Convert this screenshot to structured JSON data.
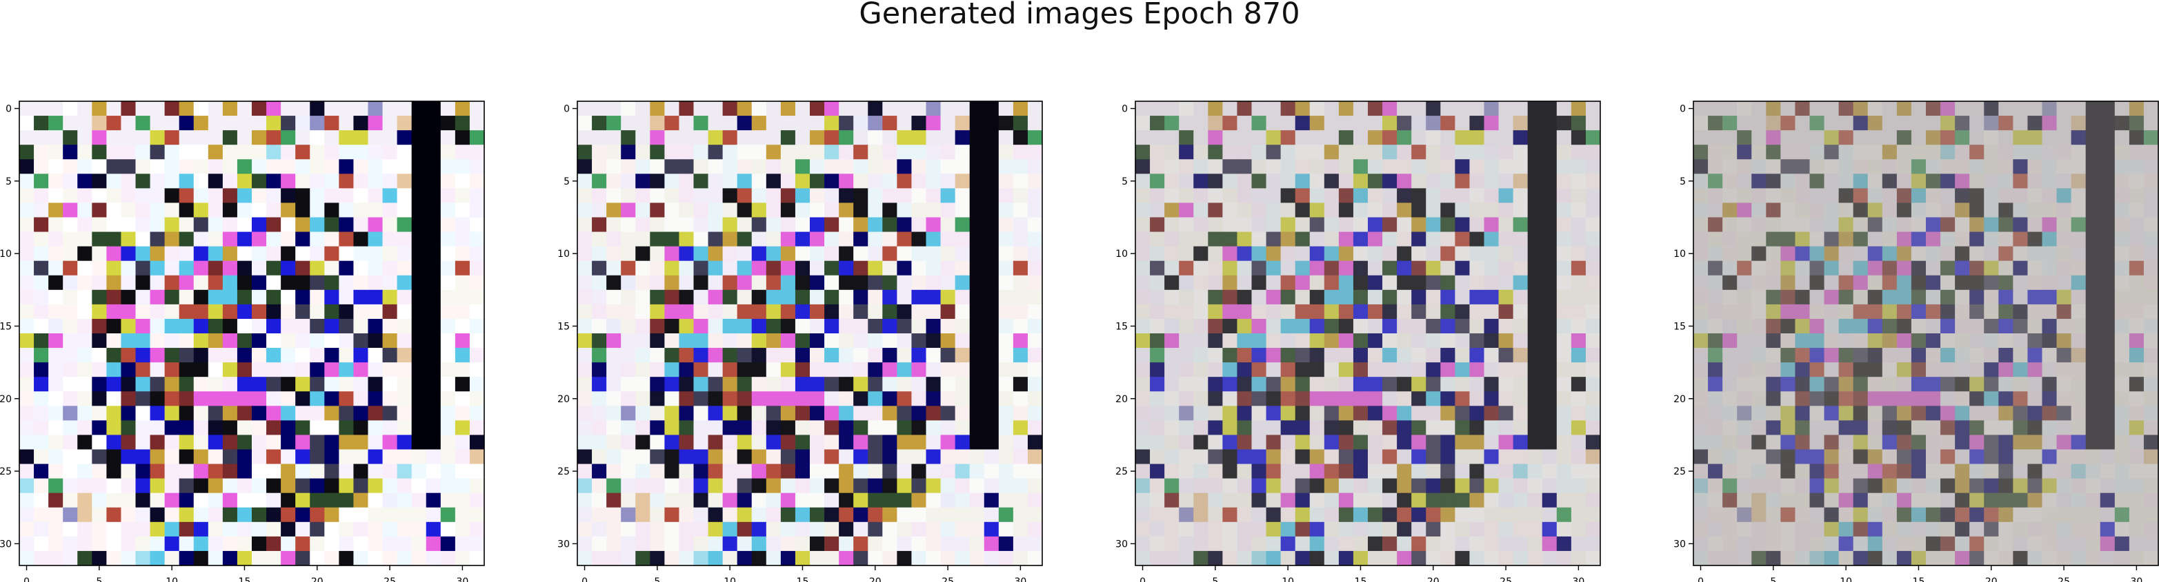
{
  "figure": {
    "title": "Generated images Epoch 870"
  },
  "chart_data": [
    {
      "type": "heatmap",
      "title": "",
      "grid_size": [
        32,
        32
      ],
      "xlim": [
        -0.5,
        31.5
      ],
      "ylim": [
        31.5,
        -0.5
      ],
      "x_ticks": [
        0,
        5,
        10,
        15,
        20,
        25,
        30
      ],
      "y_ticks": [
        0,
        5,
        10,
        15,
        20,
        25,
        30
      ],
      "contrast": 1.0
    },
    {
      "type": "heatmap",
      "title": "",
      "grid_size": [
        32,
        32
      ],
      "xlim": [
        -0.5,
        31.5
      ],
      "ylim": [
        31.5,
        -0.5
      ],
      "x_ticks": [
        0,
        5,
        10,
        15,
        20,
        25,
        30
      ],
      "y_ticks": [
        0,
        5,
        10,
        15,
        20,
        25,
        30
      ],
      "contrast": 0.95
    },
    {
      "type": "heatmap",
      "title": "",
      "grid_size": [
        32,
        32
      ],
      "xlim": [
        -0.5,
        31.5
      ],
      "ylim": [
        31.5,
        -0.5
      ],
      "x_ticks": [
        0,
        5,
        10,
        15,
        20,
        25,
        30
      ],
      "y_ticks": [
        0,
        5,
        10,
        15,
        20,
        25,
        30
      ],
      "contrast": 0.72
    },
    {
      "type": "heatmap",
      "title": "",
      "grid_size": [
        32,
        32
      ],
      "xlim": [
        -0.5,
        31.5
      ],
      "ylim": [
        31.5,
        -0.5
      ],
      "x_ticks": [
        0,
        5,
        10,
        15,
        20,
        25,
        30
      ],
      "y_ticks": [
        0,
        5,
        10,
        15,
        20,
        25,
        30
      ],
      "contrast": 0.5
    }
  ]
}
